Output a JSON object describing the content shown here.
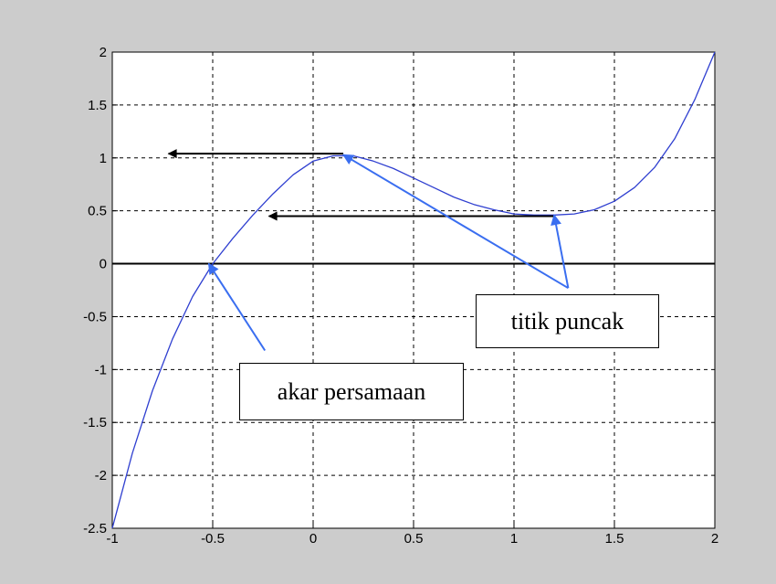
{
  "chart_data": {
    "type": "line",
    "title": "",
    "xlabel": "",
    "ylabel": "",
    "xlim": [
      -1,
      2
    ],
    "ylim": [
      -2.5,
      2
    ],
    "xticks": [
      -1,
      -0.5,
      0,
      0.5,
      1,
      1.5,
      2
    ],
    "xtick_labels": [
      "-1",
      "-0.5",
      "0",
      "0.5",
      "1",
      "1.5",
      "2"
    ],
    "yticks": [
      -2.5,
      -2,
      -1.5,
      -1,
      -0.5,
      0,
      0.5,
      1,
      1.5,
      2
    ],
    "ytick_labels": [
      "-2.5",
      "-2",
      "-1.5",
      "-1",
      "-0.5",
      "0",
      "0.5",
      "1",
      "1.5",
      "2"
    ],
    "grid": true,
    "grid_style": "dashed",
    "series": [
      {
        "color": "#2f3fd0",
        "x": [
          -1,
          -0.9,
          -0.8,
          -0.7,
          -0.6,
          -0.5,
          -0.4,
          -0.3,
          -0.2,
          -0.1,
          0,
          0.1,
          0.2,
          0.3,
          0.4,
          0.5,
          0.6,
          0.7,
          0.8,
          0.9,
          1,
          1.1,
          1.2,
          1.3,
          1.4,
          1.5,
          1.6,
          1.7,
          1.8,
          1.9,
          2
        ],
        "y": [
          -2.5,
          -1.79,
          -1.2,
          -0.71,
          -0.31,
          0.0,
          0.24,
          0.46,
          0.66,
          0.84,
          0.97,
          1.02,
          1.02,
          0.97,
          0.9,
          0.81,
          0.72,
          0.63,
          0.56,
          0.51,
          0.47,
          0.46,
          0.46,
          0.47,
          0.51,
          0.59,
          0.72,
          0.91,
          1.18,
          1.55,
          2.0
        ]
      }
    ],
    "zero_line": true,
    "annotations": [
      {
        "text": "akar persamaan",
        "arrow_to": {
          "x": -0.52,
          "y": 0.0
        },
        "arrow_from": {
          "x": -0.24,
          "y": -0.82
        },
        "arrow_color": "#3a6ef0"
      },
      {
        "text": "titik puncak",
        "arrow_to": [
          {
            "x": 0.15,
            "y": 1.03
          },
          {
            "x": 1.2,
            "y": 0.46
          }
        ],
        "arrow_from": {
          "x": 1.27,
          "y": -0.23
        },
        "arrow_color": "#3a6ef0"
      }
    ],
    "reference_arrows": [
      {
        "from": {
          "x": 0.15,
          "y": 1.04
        },
        "to": {
          "x": -0.72,
          "y": 1.04
        },
        "color": "#000000"
      },
      {
        "from": {
          "x": 1.2,
          "y": 0.45
        },
        "to": {
          "x": -0.22,
          "y": 0.45
        },
        "color": "#000000"
      }
    ]
  },
  "colors": {
    "figure_background": "#cccccc",
    "axes_background": "#ffffff",
    "grid": "#000000",
    "curve": "#2f3fd0",
    "annotation_arrow": "#3a6ef0",
    "reference_arrow": "#000000"
  },
  "labels": {
    "root_label": "akar persamaan",
    "peak_label": "titik puncak"
  }
}
